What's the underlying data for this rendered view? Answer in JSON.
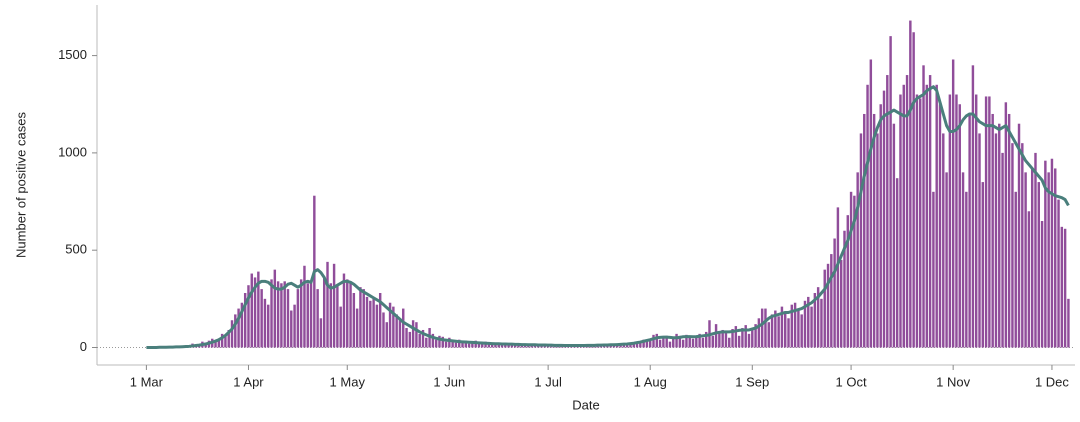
{
  "chart_data": {
    "type": "bar",
    "x_label": "Date",
    "y_label": "Number of positive cases",
    "x": [
      "03-01",
      "03-02",
      "03-03",
      "03-04",
      "03-05",
      "03-06",
      "03-07",
      "03-08",
      "03-09",
      "03-10",
      "03-11",
      "03-12",
      "03-13",
      "03-14",
      "03-15",
      "03-16",
      "03-17",
      "03-18",
      "03-19",
      "03-20",
      "03-21",
      "03-22",
      "03-23",
      "03-24",
      "03-25",
      "03-26",
      "03-27",
      "03-28",
      "03-29",
      "03-30",
      "03-31",
      "04-01",
      "04-02",
      "04-03",
      "04-04",
      "04-05",
      "04-06",
      "04-07",
      "04-08",
      "04-09",
      "04-10",
      "04-11",
      "04-12",
      "04-13",
      "04-14",
      "04-15",
      "04-16",
      "04-17",
      "04-18",
      "04-19",
      "04-20",
      "04-21",
      "04-22",
      "04-23",
      "04-24",
      "04-25",
      "04-26",
      "04-27",
      "04-28",
      "04-29",
      "04-30",
      "05-01",
      "05-02",
      "05-03",
      "05-04",
      "05-05",
      "05-06",
      "05-07",
      "05-08",
      "05-09",
      "05-10",
      "05-11",
      "05-12",
      "05-13",
      "05-14",
      "05-15",
      "05-16",
      "05-17",
      "05-18",
      "05-19",
      "05-20",
      "05-21",
      "05-22",
      "05-23",
      "05-24",
      "05-25",
      "05-26",
      "05-27",
      "05-28",
      "05-29",
      "05-30",
      "05-31",
      "06-01",
      "06-02",
      "06-03",
      "06-04",
      "06-05",
      "06-06",
      "06-07",
      "06-08",
      "06-09",
      "06-10",
      "06-11",
      "06-12",
      "06-13",
      "06-14",
      "06-15",
      "06-16",
      "06-17",
      "06-18",
      "06-19",
      "06-20",
      "06-21",
      "06-22",
      "06-23",
      "06-24",
      "06-25",
      "06-26",
      "06-27",
      "06-28",
      "06-29",
      "06-30",
      "07-01",
      "07-02",
      "07-03",
      "07-04",
      "07-05",
      "07-06",
      "07-07",
      "07-08",
      "07-09",
      "07-10",
      "07-11",
      "07-12",
      "07-13",
      "07-14",
      "07-15",
      "07-16",
      "07-17",
      "07-18",
      "07-19",
      "07-20",
      "07-21",
      "07-22",
      "07-23",
      "07-24",
      "07-25",
      "07-26",
      "07-27",
      "07-28",
      "07-29",
      "07-30",
      "07-31",
      "08-01",
      "08-02",
      "08-03",
      "08-04",
      "08-05",
      "08-06",
      "08-07",
      "08-08",
      "08-09",
      "08-10",
      "08-11",
      "08-12",
      "08-13",
      "08-14",
      "08-15",
      "08-16",
      "08-17",
      "08-18",
      "08-19",
      "08-20",
      "08-21",
      "08-22",
      "08-23",
      "08-24",
      "08-25",
      "08-26",
      "08-27",
      "08-28",
      "08-29",
      "08-30",
      "08-31",
      "09-01",
      "09-02",
      "09-03",
      "09-04",
      "09-05",
      "09-06",
      "09-07",
      "09-08",
      "09-09",
      "09-10",
      "09-11",
      "09-12",
      "09-13",
      "09-14",
      "09-15",
      "09-16",
      "09-17",
      "09-18",
      "09-19",
      "09-20",
      "09-21",
      "09-22",
      "09-23",
      "09-24",
      "09-25",
      "09-26",
      "09-27",
      "09-28",
      "09-29",
      "09-30",
      "10-01",
      "10-02",
      "10-03",
      "10-04",
      "10-05",
      "10-06",
      "10-07",
      "10-08",
      "10-09",
      "10-10",
      "10-11",
      "10-12",
      "10-13",
      "10-14",
      "10-15",
      "10-16",
      "10-17",
      "10-18",
      "10-19",
      "10-20",
      "10-21",
      "10-22",
      "10-23",
      "10-24",
      "10-25",
      "10-26",
      "10-27",
      "10-28",
      "10-29",
      "10-30",
      "10-31",
      "11-01",
      "11-02",
      "11-03",
      "11-04",
      "11-05",
      "11-06",
      "11-07",
      "11-08",
      "11-09",
      "11-10",
      "11-11",
      "11-12",
      "11-13",
      "11-14",
      "11-15",
      "11-16",
      "11-17",
      "11-18",
      "11-19",
      "11-20",
      "11-21",
      "11-22",
      "11-23",
      "11-24",
      "11-25",
      "11-26",
      "11-27",
      "11-28",
      "11-29",
      "11-30",
      "12-01",
      "12-02",
      "12-03",
      "12-04",
      "12-05",
      "12-06"
    ],
    "series": [
      {
        "type": "bar",
        "color": "#904d9a",
        "values": [
          0,
          0,
          1,
          0,
          1,
          2,
          1,
          3,
          2,
          4,
          5,
          6,
          8,
          10,
          20,
          15,
          12,
          30,
          25,
          35,
          45,
          30,
          40,
          70,
          60,
          90,
          140,
          170,
          200,
          230,
          280,
          320,
          380,
          360,
          390,
          300,
          250,
          220,
          350,
          400,
          340,
          330,
          340,
          300,
          190,
          220,
          300,
          350,
          420,
          330,
          340,
          780,
          300,
          150,
          360,
          440,
          330,
          430,
          320,
          210,
          380,
          350,
          340,
          280,
          200,
          310,
          300,
          260,
          240,
          250,
          220,
          280,
          180,
          130,
          230,
          210,
          170,
          150,
          200,
          100,
          80,
          140,
          130,
          70,
          90,
          50,
          100,
          70,
          40,
          60,
          55,
          30,
          50,
          40,
          25,
          40,
          30,
          35,
          20,
          30,
          35,
          25,
          20,
          30,
          22,
          15,
          25,
          20,
          15,
          25,
          18,
          12,
          20,
          15,
          12,
          18,
          15,
          10,
          15,
          14,
          12,
          10,
          10,
          15,
          12,
          8,
          10,
          12,
          9,
          11,
          10,
          8,
          12,
          10,
          9,
          13,
          12,
          10,
          15,
          14,
          12,
          16,
          12,
          18,
          15,
          20,
          16,
          25,
          22,
          30,
          25,
          40,
          35,
          45,
          65,
          70,
          40,
          55,
          60,
          30,
          50,
          70,
          60,
          40,
          65,
          55,
          45,
          60,
          70,
          50,
          80,
          140,
          60,
          120,
          80,
          90,
          75,
          50,
          95,
          110,
          60,
          100,
          115,
          70,
          90,
          120,
          150,
          200,
          200,
          130,
          170,
          190,
          160,
          210,
          180,
          150,
          220,
          230,
          200,
          170,
          240,
          260,
          210,
          280,
          310,
          250,
          400,
          430,
          480,
          560,
          720,
          450,
          600,
          680,
          800,
          780,
          900,
          1100,
          1200,
          1350,
          1480,
          1200,
          1100,
          1250,
          1320,
          1400,
          1600,
          1150,
          870,
          1300,
          1350,
          1400,
          1680,
          1620,
          1300,
          1280,
          1450,
          1350,
          1400,
          800,
          1350,
          1250,
          1100,
          900,
          1300,
          1480,
          1300,
          1250,
          900,
          800,
          1200,
          1450,
          1300,
          1100,
          850,
          1290,
          1290,
          1200,
          1100,
          1150,
          1000,
          1260,
          1200,
          1050,
          800,
          1150,
          1050,
          900,
          700,
          920,
          1000,
          850,
          650,
          960,
          900,
          970,
          920,
          760,
          620,
          610,
          250
        ]
      },
      {
        "type": "line",
        "color": "#4a7f7c",
        "values": [
          0,
          0,
          0,
          0,
          1,
          1,
          1,
          2,
          2,
          3,
          3,
          4,
          5,
          6,
          8,
          10,
          12,
          15,
          18,
          22,
          27,
          33,
          40,
          50,
          62,
          78,
          95,
          120,
          150,
          185,
          220,
          255,
          285,
          310,
          330,
          340,
          340,
          335,
          320,
          305,
          300,
          300,
          310,
          325,
          330,
          320,
          310,
          320,
          335,
          340,
          335,
          390,
          400,
          385,
          360,
          320,
          305,
          310,
          320,
          330,
          340,
          340,
          335,
          325,
          310,
          295,
          285,
          275,
          265,
          255,
          245,
          235,
          220,
          205,
          190,
          175,
          160,
          145,
          130,
          120,
          110,
          100,
          90,
          80,
          72,
          65,
          58,
          52,
          47,
          43,
          40,
          38,
          36,
          34,
          32,
          30,
          29,
          28,
          27,
          26,
          25,
          24,
          23,
          22,
          21,
          20,
          19,
          19,
          18,
          18,
          17,
          17,
          16,
          16,
          15,
          15,
          14,
          14,
          14,
          13,
          13,
          13,
          12,
          12,
          11,
          11,
          11,
          10,
          10,
          10,
          10,
          10,
          10,
          10,
          11,
          11,
          11,
          12,
          12,
          13,
          13,
          14,
          14,
          15,
          16,
          17,
          18,
          20,
          22,
          25,
          28,
          32,
          36,
          40,
          45,
          50,
          52,
          53,
          53,
          52,
          50,
          50,
          52,
          55,
          56,
          56,
          55,
          56,
          58,
          60,
          62,
          65,
          70,
          75,
          78,
          80,
          80,
          80,
          82,
          85,
          88,
          90,
          90,
          90,
          95,
          100,
          110,
          120,
          135,
          150,
          160,
          165,
          170,
          175,
          180,
          180,
          185,
          190,
          195,
          200,
          210,
          220,
          230,
          245,
          260,
          280,
          300,
          330,
          360,
          390,
          430,
          470,
          510,
          550,
          600,
          650,
          720,
          800,
          880,
          950,
          1020,
          1080,
          1130,
          1170,
          1190,
          1200,
          1210,
          1220,
          1210,
          1200,
          1190,
          1190,
          1220,
          1260,
          1280,
          1290,
          1300,
          1320,
          1330,
          1340,
          1320,
          1260,
          1200,
          1140,
          1110,
          1110,
          1120,
          1140,
          1170,
          1190,
          1200,
          1200,
          1180,
          1160,
          1150,
          1140,
          1140,
          1140,
          1130,
          1120,
          1130,
          1140,
          1110,
          1080,
          1050,
          1020,
          990,
          960,
          940,
          920,
          900,
          880,
          860,
          820,
          800,
          790,
          780,
          775,
          770,
          760,
          730
        ]
      }
    ],
    "xlim": [
      "02-14",
      "12-08"
    ],
    "xticks": [
      {
        "value": "03-01",
        "label": "1 Mar"
      },
      {
        "value": "04-01",
        "label": "1 Apr"
      },
      {
        "value": "05-01",
        "label": "1 May"
      },
      {
        "value": "06-01",
        "label": "1 Jun"
      },
      {
        "value": "07-01",
        "label": "1 Jul"
      },
      {
        "value": "08-01",
        "label": "1 Aug"
      },
      {
        "value": "09-01",
        "label": "1 Sep"
      },
      {
        "value": "10-01",
        "label": "1 Oct"
      },
      {
        "value": "11-01",
        "label": "1 Nov"
      },
      {
        "value": "12-01",
        "label": "1 Dec"
      }
    ],
    "ylim": [
      -90,
      1760
    ],
    "yticks": [
      0,
      500,
      1000,
      1500
    ]
  }
}
